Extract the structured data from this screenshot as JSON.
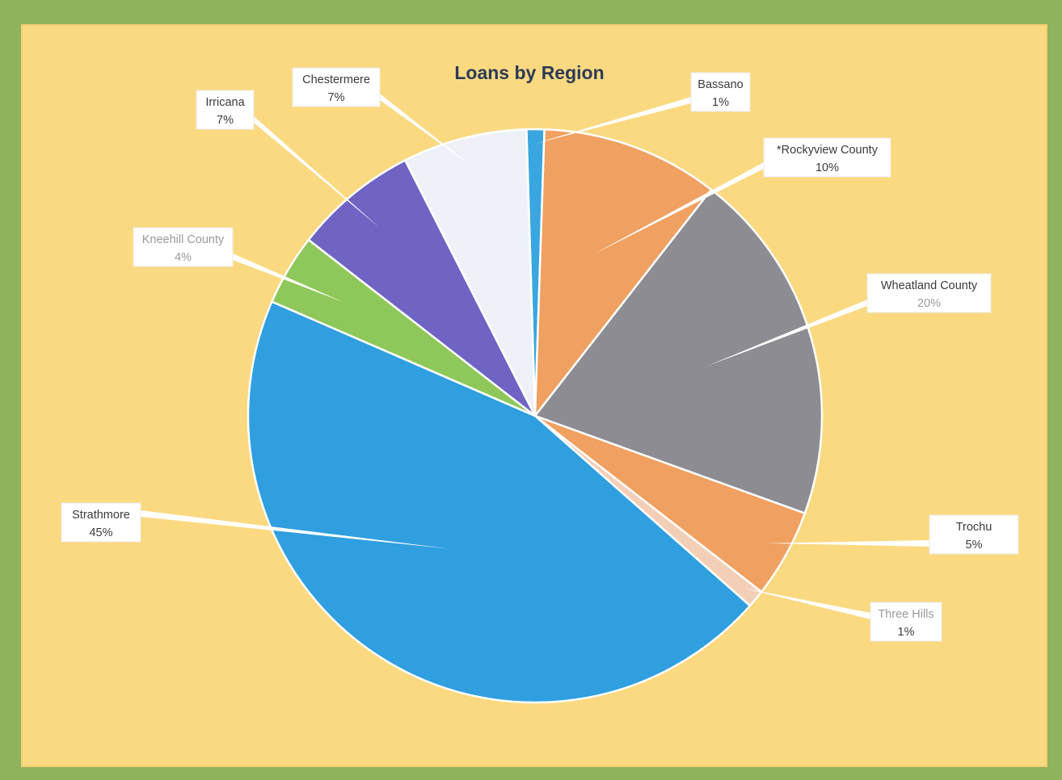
{
  "chart_data": {
    "type": "pie",
    "title": "Loans by Region",
    "slices": [
      {
        "name": "Bassano",
        "label": "1%",
        "value": 1,
        "color": "#3aa6e0"
      },
      {
        "name": "*Rockyview County",
        "label": "10%",
        "value": 10,
        "color": "#f0a060"
      },
      {
        "name": "Wheatland County",
        "label": "20%",
        "value": 20,
        "color": "#8c8c92"
      },
      {
        "name": "Trochu",
        "label": "5%",
        "value": 5,
        "color": "#f0a060"
      },
      {
        "name": "Three Hills",
        "label": "1%",
        "value": 1,
        "color": "#f4cfb8"
      },
      {
        "name": "Strathmore",
        "label": "45%",
        "value": 45,
        "color": "#2f9fe0"
      },
      {
        "name": "Kneehill County",
        "label": "4%",
        "value": 4,
        "color": "#8fc85a"
      },
      {
        "name": "Irricana",
        "label": "7%",
        "value": 7,
        "color": "#6f63c4"
      },
      {
        "name": "Chestermere",
        "label": "7%",
        "value": 7,
        "color": "#eef2f8"
      }
    ],
    "legend": "none",
    "data_labels": "outside-with-leader-lines"
  },
  "colors": {
    "frame": "#8fb35c",
    "background": "#fbd980",
    "title": "#2b3a55"
  }
}
